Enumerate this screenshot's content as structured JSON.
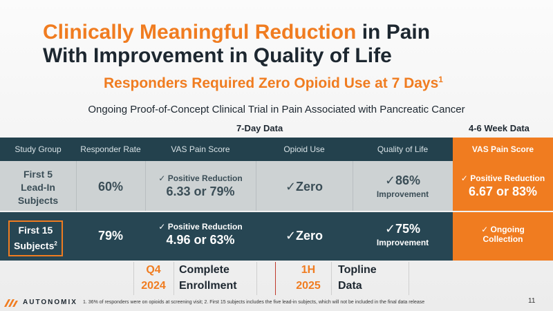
{
  "title": {
    "accent": "Clinically Meaningful Reduction",
    "rest1": " in Pain",
    "line2": "With Improvement in Quality of Life"
  },
  "subtitle": {
    "text": "Responders Required Zero Opioid Use at 7 Days",
    "sup": "1"
  },
  "trial_line": "Ongoing Proof-of-Concept Clinical Trial in Pain Associated with Pancreatic Cancer",
  "groups": {
    "seven_day": "7-Day Data",
    "four_six_week": "4-6 Week Data"
  },
  "headers": [
    "Study Group",
    "Responder Rate",
    "VAS Pain Score",
    "Opioid Use",
    "Quality of Life",
    "VAS Pain Score"
  ],
  "rows": [
    {
      "group_lines": [
        "First 5",
        "Lead-In",
        "Subjects"
      ],
      "responder_rate": "60%",
      "vas_label": "Positive Reduction",
      "vas_value": "6.33 or 79%",
      "opioid": "Zero",
      "qol_pct": "86%",
      "qol_label": "Improvement",
      "wk_label": "Positive Reduction",
      "wk_value": "6.67 or 83%"
    },
    {
      "group_line1": "First 15",
      "group_line2": "Subjects",
      "group_sup": "2",
      "responder_rate": "79%",
      "vas_label": "Positive Reduction",
      "vas_value": "4.96 or 63%",
      "opioid": "Zero",
      "qol_pct": "75%",
      "qol_label": "Improvement",
      "wk_line1": "Ongoing",
      "wk_line2": "Collection"
    }
  ],
  "timeline": [
    {
      "q1": "Q4",
      "q2": "2024",
      "t1": "Complete",
      "t2": "Enrollment"
    },
    {
      "q1": "1H",
      "q2": "2025",
      "t1": "Topline",
      "t2": "Data"
    }
  ],
  "check_glyph": "✓",
  "footnote": "1. 36% of responders were on opioids at screening visit; 2. First 15 subjects includes the five lead-in subjects, which will not be included in the final data release",
  "logo_text": "AUTONOMIX",
  "page_number": "11",
  "colors": {
    "accent": "#f07c20",
    "dark_teal": "#23414d",
    "light_row": "#cdd2d3"
  }
}
